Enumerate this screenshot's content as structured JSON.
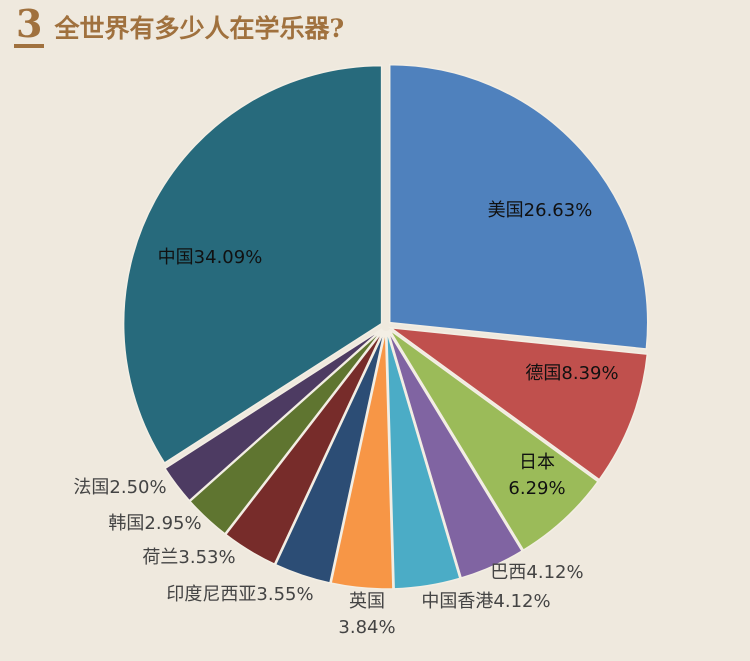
{
  "header": {
    "number": "3",
    "title": "全世界有多少人在学乐器?"
  },
  "chart_data": {
    "type": "pie",
    "title": "全世界有多少人在学乐器?",
    "slices": [
      {
        "label": "美国",
        "value": 26.63,
        "display": "美国26.63%",
        "color": "#4f81bd"
      },
      {
        "label": "德国",
        "value": 8.39,
        "display": "德国8.39%",
        "color": "#c0504d"
      },
      {
        "label": "日本",
        "value": 6.29,
        "display": "日本\n6.29%",
        "color": "#9bbb59"
      },
      {
        "label": "巴西",
        "value": 4.12,
        "display": "巴西4.12%",
        "color": "#8064a2"
      },
      {
        "label": "中国香港",
        "value": 4.12,
        "display": "中国香港4.12%",
        "color": "#4bacc6"
      },
      {
        "label": "英国",
        "value": 3.84,
        "display": "英国\n3.84%",
        "color": "#f79646"
      },
      {
        "label": "印度尼西亚",
        "value": 3.55,
        "display": "印度尼西亚3.55%",
        "color": "#2c4d75"
      },
      {
        "label": "荷兰",
        "value": 3.53,
        "display": "荷兰3.53%",
        "color": "#772c2a"
      },
      {
        "label": "韩国",
        "value": 2.95,
        "display": "韩国2.95%",
        "color": "#5f7530"
      },
      {
        "label": "法国",
        "value": 2.5,
        "display": "法国2.50%",
        "color": "#4d3b62"
      },
      {
        "label": "中国",
        "value": 34.09,
        "display": "中国34.09%",
        "color": "#276a7c"
      }
    ]
  }
}
